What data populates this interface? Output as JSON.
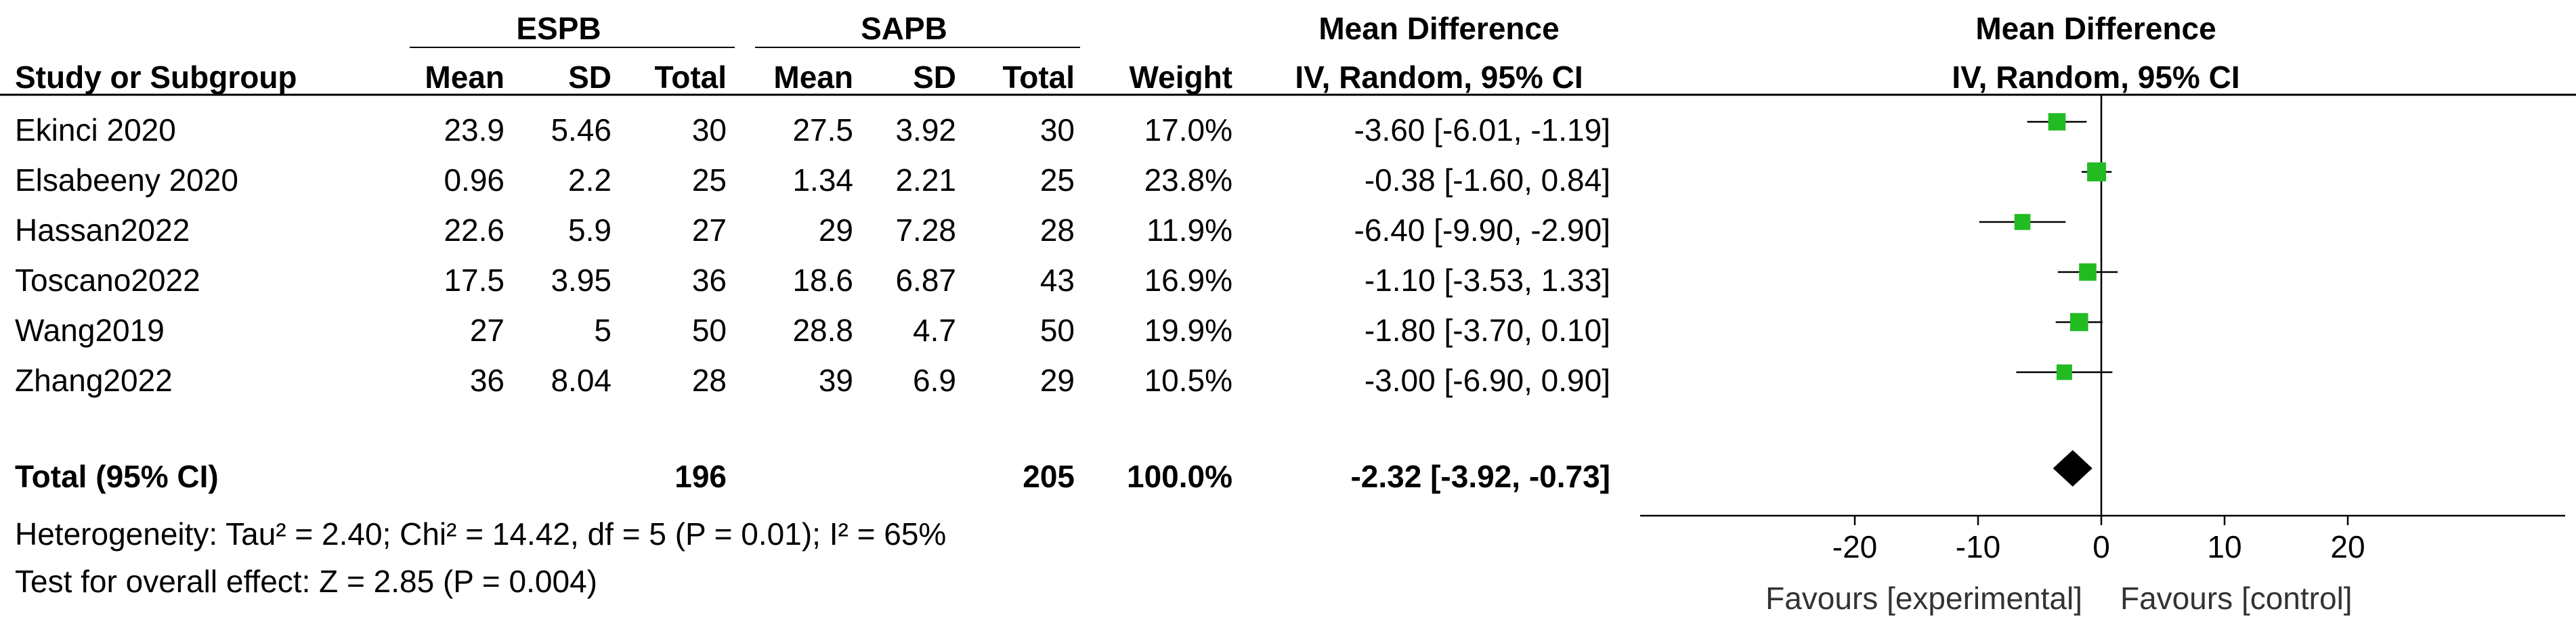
{
  "header": {
    "group_experimental": "ESPB",
    "group_control": "SAPB",
    "effect_measure_top": "Mean Difference",
    "col_study": "Study or Subgroup",
    "col_mean": "Mean",
    "col_sd": "SD",
    "col_total": "Total",
    "col_weight": "Weight",
    "col_method": "IV, Random, 95% CI",
    "plot_title_top": "Mean Difference",
    "plot_title_bottom": "IV, Random, 95% CI"
  },
  "studies": [
    {
      "name": "Ekinci 2020",
      "e_mean": "23.9",
      "e_sd": "5.46",
      "e_total": "30",
      "c_mean": "27.5",
      "c_sd": "3.92",
      "c_total": "30",
      "weight": "17.0%",
      "ci_text": "-3.60 [-6.01, -1.19]"
    },
    {
      "name": "Elsabeeny 2020",
      "e_mean": "0.96",
      "e_sd": "2.2",
      "e_total": "25",
      "c_mean": "1.34",
      "c_sd": "2.21",
      "c_total": "25",
      "weight": "23.8%",
      "ci_text": "-0.38 [-1.60, 0.84]"
    },
    {
      "name": "Hassan2022",
      "e_mean": "22.6",
      "e_sd": "5.9",
      "e_total": "27",
      "c_mean": "29",
      "c_sd": "7.28",
      "c_total": "28",
      "weight": "11.9%",
      "ci_text": "-6.40 [-9.90, -2.90]"
    },
    {
      "name": "Toscano2022",
      "e_mean": "17.5",
      "e_sd": "3.95",
      "e_total": "36",
      "c_mean": "18.6",
      "c_sd": "6.87",
      "c_total": "43",
      "weight": "16.9%",
      "ci_text": "-1.10 [-3.53, 1.33]"
    },
    {
      "name": "Wang2019",
      "e_mean": "27",
      "e_sd": "5",
      "e_total": "50",
      "c_mean": "28.8",
      "c_sd": "4.7",
      "c_total": "50",
      "weight": "19.9%",
      "ci_text": "-1.80 [-3.70, 0.10]"
    },
    {
      "name": "Zhang2022",
      "e_mean": "36",
      "e_sd": "8.04",
      "e_total": "28",
      "c_mean": "39",
      "c_sd": "6.9",
      "c_total": "29",
      "weight": "10.5%",
      "ci_text": "-3.00 [-6.90, 0.90]"
    }
  ],
  "total": {
    "label": "Total (95% CI)",
    "e_total": "196",
    "c_total": "205",
    "weight": "100.0%",
    "ci_text": "-2.32 [-3.92, -0.73]"
  },
  "footnotes": {
    "heterogeneity": "Heterogeneity: Tau² = 2.40; Chi² = 14.42, df = 5 (P = 0.01); I² = 65%",
    "overall_effect": "Test for overall effect: Z = 2.85 (P = 0.004)"
  },
  "colors": {
    "marker": "#22bb22",
    "diamond": "#000000",
    "line": "#000000"
  },
  "chart_data": {
    "type": "forest",
    "studies": [
      "Ekinci 2020",
      "Elsabeeny 2020",
      "Hassan2022",
      "Toscano2022",
      "Wang2019",
      "Zhang2022"
    ],
    "estimates": [
      -3.6,
      -0.38,
      -6.4,
      -1.1,
      -1.8,
      -3.0
    ],
    "ci_lower": [
      -6.01,
      -1.6,
      -9.9,
      -3.53,
      -3.7,
      -6.9
    ],
    "ci_upper": [
      -1.19,
      0.84,
      -2.9,
      1.33,
      0.1,
      0.9
    ],
    "weights": [
      17.0,
      23.8,
      11.9,
      16.9,
      19.9,
      10.5
    ],
    "pooled": {
      "estimate": -2.32,
      "ci_lower": -3.92,
      "ci_upper": -0.73
    },
    "x_ticks": [
      -20,
      -10,
      0,
      10,
      20
    ],
    "xlim": [
      -20,
      20
    ],
    "xlabel_left": "Favours [experimental]",
    "xlabel_right": "Favours [control]"
  }
}
